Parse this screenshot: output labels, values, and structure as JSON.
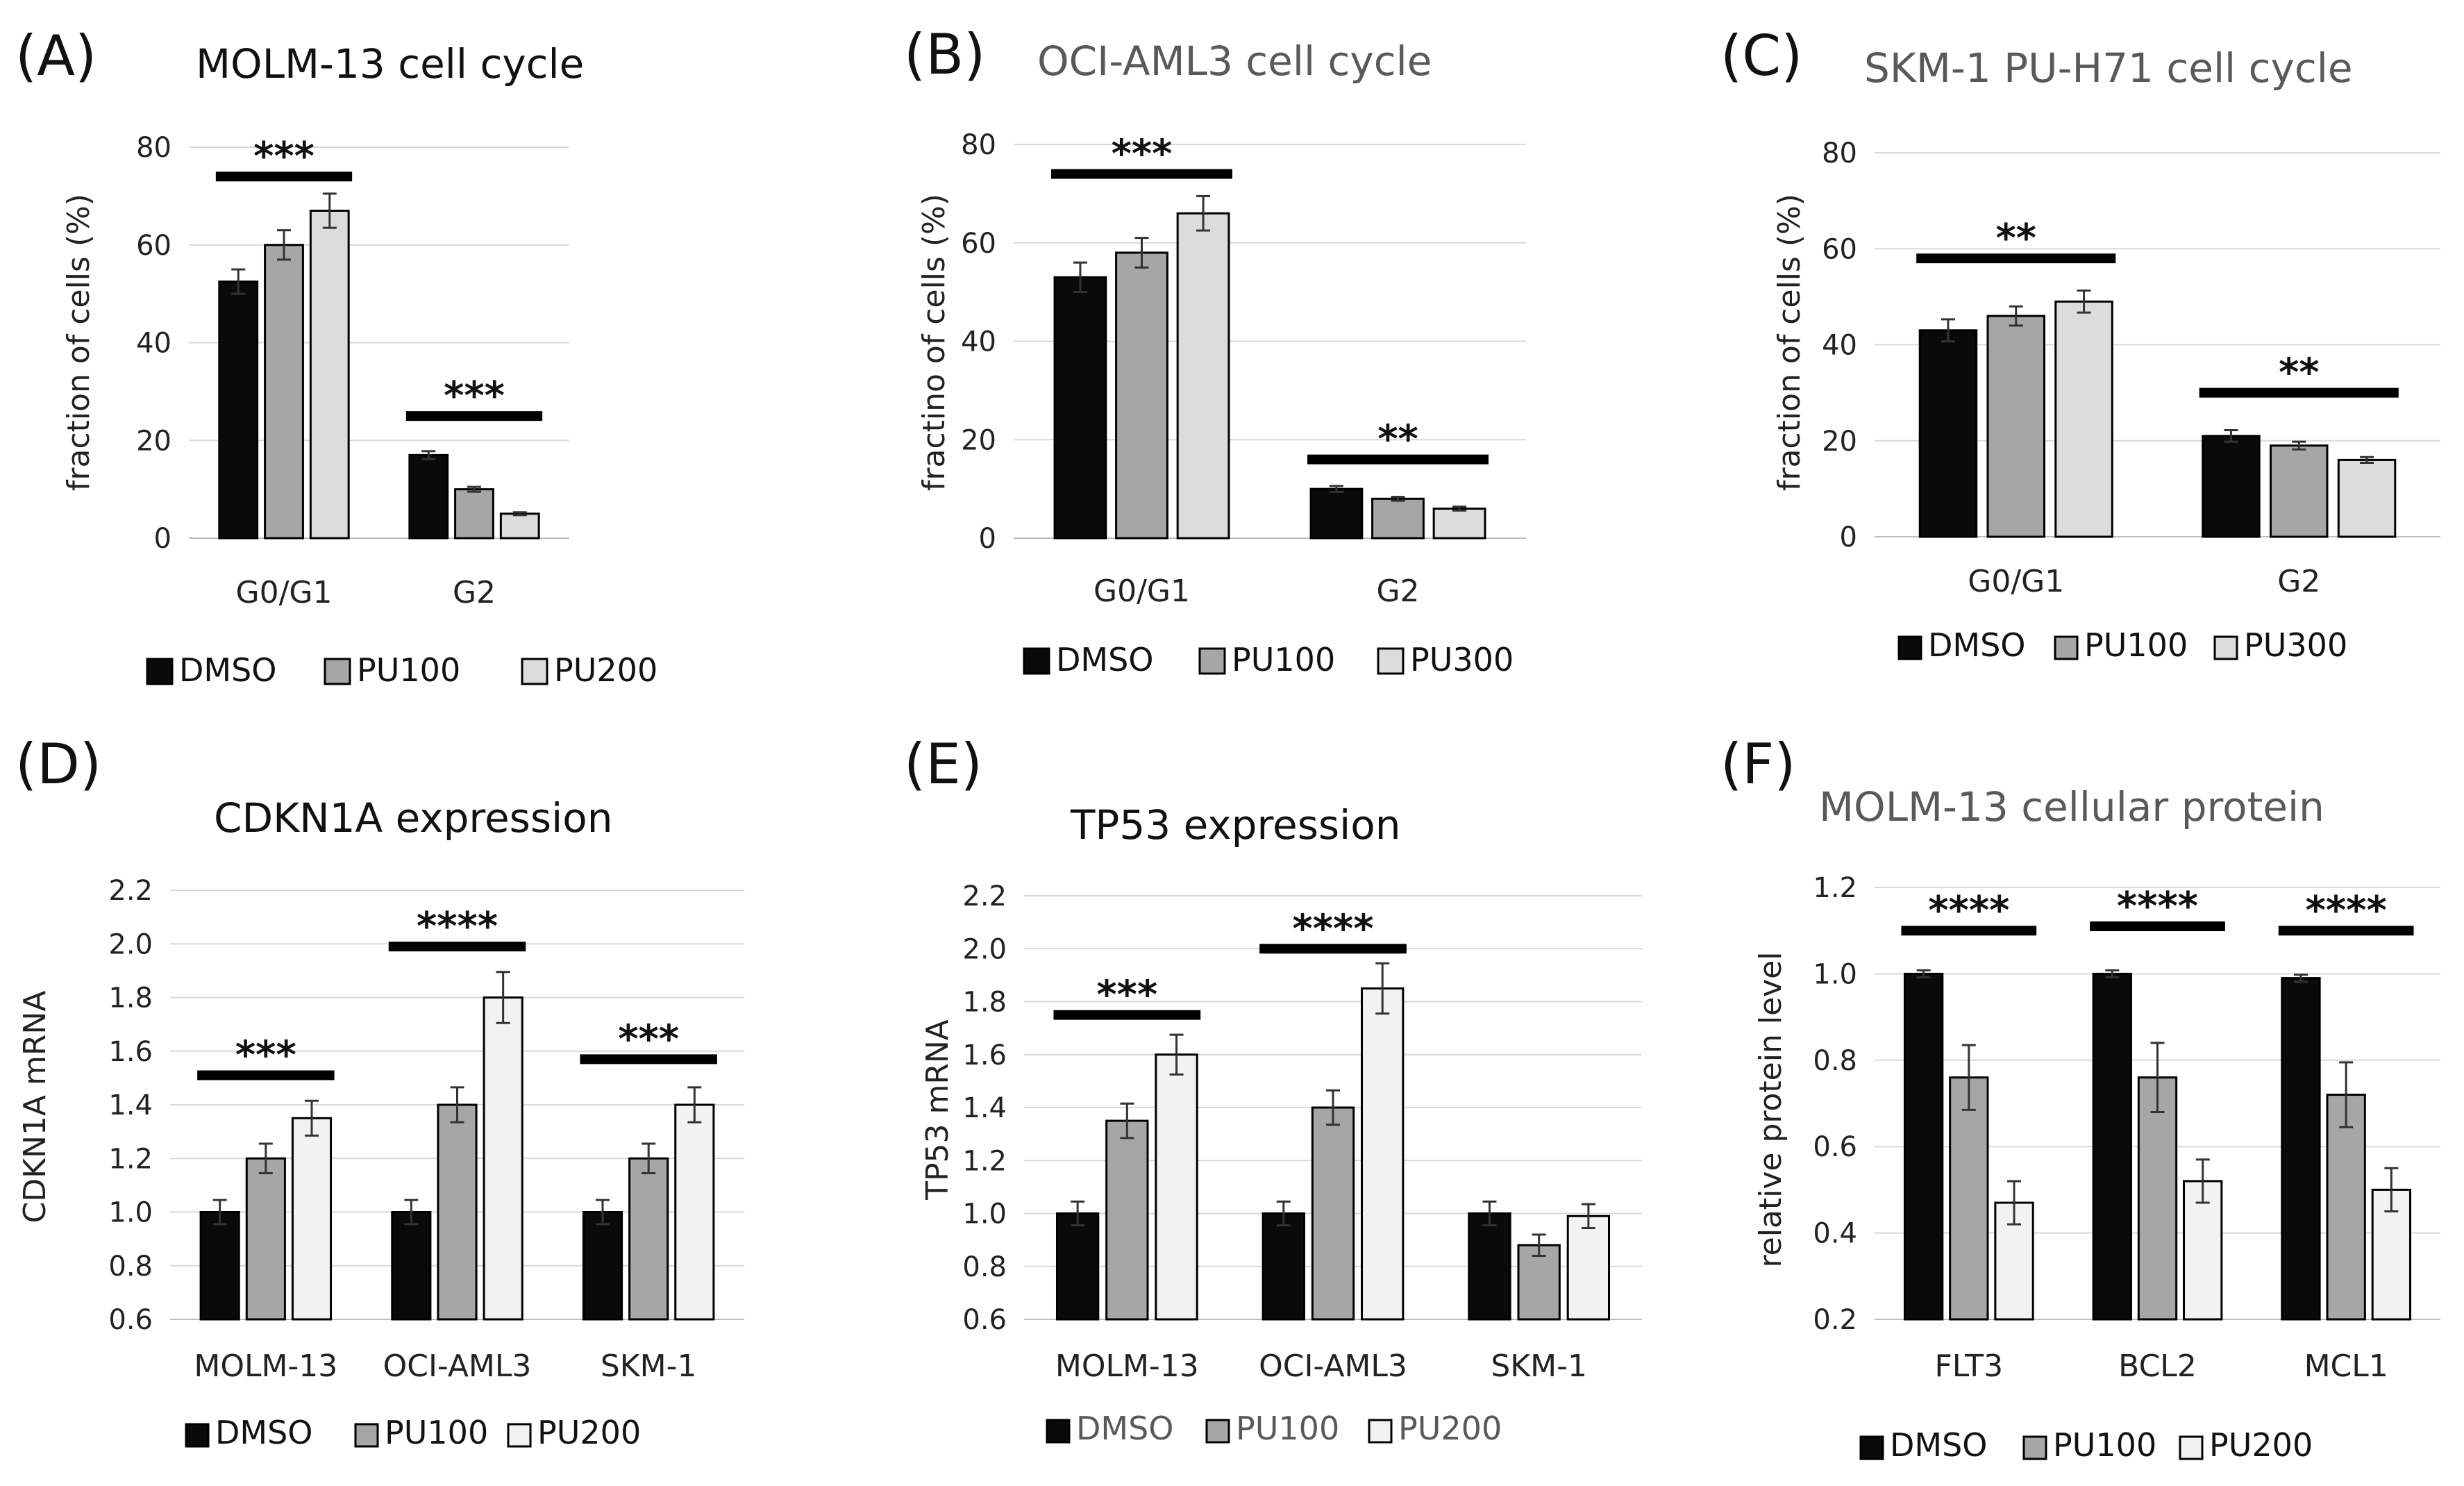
{
  "colors": {
    "DMSO": "#0a0a0a",
    "PU100": "#a6a6a6",
    "PU200": "#dcdcdc",
    "PU300": "#dcdcdc"
  },
  "colors_white_panels": {
    "DMSO": "#0a0a0a",
    "PU100": "#a6a6a6",
    "PU200": "#f2f2f2"
  },
  "chart_data": [
    {
      "panel": "(A)",
      "type": "bar",
      "title": "MOLM-13 cell cycle",
      "title_style": "dark",
      "ylabel": "fraction of cells (%)",
      "ylim": [
        0,
        80
      ],
      "yticks": [
        "0",
        "20",
        "40",
        "60",
        "80"
      ],
      "ytick_values": [
        0,
        20,
        40,
        60,
        80
      ],
      "categories": [
        "G0/G1",
        "G2"
      ],
      "series": [
        {
          "name": "DMSO",
          "values": [
            52.5,
            17
          ],
          "errors": [
            2.5,
            0.8
          ]
        },
        {
          "name": "PU100",
          "values": [
            60,
            10
          ],
          "errors": [
            3,
            0.5
          ]
        },
        {
          "name": "PU200",
          "values": [
            67,
            5
          ],
          "errors": [
            3.5,
            0.3
          ]
        }
      ],
      "significance": [
        {
          "group": 0,
          "y": 74,
          "label": "***"
        },
        {
          "group": 1,
          "y": 25,
          "label": "***"
        }
      ],
      "legend": [
        "DMSO",
        "PU100",
        "PU200"
      ],
      "legend_position": "bottom",
      "palette": "gray"
    },
    {
      "panel": "(B)",
      "type": "bar",
      "title": "OCI-AML3 cell cycle",
      "title_style": "gray",
      "ylabel": "fractino of cells (%)",
      "ylim": [
        0,
        80
      ],
      "yticks": [
        "0",
        "20",
        "40",
        "60",
        "80"
      ],
      "ytick_values": [
        0,
        20,
        40,
        60,
        80
      ],
      "categories": [
        "G0/G1",
        "G2"
      ],
      "series": [
        {
          "name": "DMSO",
          "values": [
            53,
            10
          ],
          "errors": [
            3,
            0.6
          ]
        },
        {
          "name": "PU100",
          "values": [
            58,
            8
          ],
          "errors": [
            3,
            0.4
          ]
        },
        {
          "name": "PU300",
          "values": [
            66,
            6
          ],
          "errors": [
            3.5,
            0.4
          ]
        }
      ],
      "significance": [
        {
          "group": 0,
          "y": 74,
          "label": "***"
        },
        {
          "group": 1,
          "y": 16,
          "label": "**"
        }
      ],
      "legend": [
        "DMSO",
        "PU100",
        "PU300"
      ],
      "legend_position": "bottom",
      "palette": "gray"
    },
    {
      "panel": "(C)",
      "type": "bar",
      "title": "SKM-1 PU-H71 cell cycle",
      "title_style": "gray",
      "ylabel": "fraction of cells (%)",
      "ylim": [
        0,
        80
      ],
      "yticks": [
        "0",
        "20",
        "40",
        "60",
        "80"
      ],
      "ytick_values": [
        0,
        20,
        40,
        60,
        80
      ],
      "categories": [
        "G0/G1",
        "G2"
      ],
      "series": [
        {
          "name": "DMSO",
          "values": [
            43,
            21
          ],
          "errors": [
            2.3,
            1.2
          ]
        },
        {
          "name": "PU100",
          "values": [
            46,
            19
          ],
          "errors": [
            2,
            0.8
          ]
        },
        {
          "name": "PU300",
          "values": [
            49,
            16
          ],
          "errors": [
            2.3,
            0.6
          ]
        }
      ],
      "significance": [
        {
          "group": 0,
          "y": 58,
          "label": "**"
        },
        {
          "group": 1,
          "y": 30,
          "label": "**"
        }
      ],
      "legend": [
        "DMSO",
        "PU100",
        "PU300"
      ],
      "legend_position": "bottom",
      "palette": "gray"
    },
    {
      "panel": "(D)",
      "type": "bar",
      "title": "CDKN1A expression",
      "title_style": "dark",
      "ylabel": "CDKN1A mRNA",
      "ylim": [
        0.6,
        2.2
      ],
      "yticks": [
        "0.6",
        "0.8",
        "1.0",
        "1.2",
        "1.4",
        "1.6",
        "1.8",
        "2.0",
        "2.2"
      ],
      "ytick_values": [
        0.6,
        0.8,
        1.0,
        1.2,
        1.4,
        1.6,
        1.8,
        2.0,
        2.2
      ],
      "categories": [
        "MOLM-13",
        "OCI-AML3",
        "SKM-1"
      ],
      "series": [
        {
          "name": "DMSO",
          "values": [
            1.0,
            1.0,
            1.0
          ],
          "errors": [
            0.045,
            0.045,
            0.045
          ]
        },
        {
          "name": "PU100",
          "values": [
            1.2,
            1.4,
            1.2
          ],
          "errors": [
            0.055,
            0.065,
            0.055
          ]
        },
        {
          "name": "PU200",
          "values": [
            1.35,
            1.8,
            1.4
          ],
          "errors": [
            0.065,
            0.095,
            0.065
          ]
        }
      ],
      "significance": [
        {
          "group": 0,
          "y": 1.51,
          "label": "***"
        },
        {
          "group": 1,
          "y": 1.99,
          "label": "****"
        },
        {
          "group": 2,
          "y": 1.57,
          "label": "***"
        }
      ],
      "legend": [
        "DMSO",
        "PU100",
        "PU200"
      ],
      "legend_position": "bottom",
      "palette": "white"
    },
    {
      "panel": "(E)",
      "type": "bar",
      "title": "TP53 expression",
      "title_style": "dark",
      "ylabel": "TP53 mRNA",
      "ylim": [
        0.6,
        2.2
      ],
      "yticks": [
        "0.6",
        "0.8",
        "1.0",
        "1.2",
        "1.4",
        "1.6",
        "1.8",
        "2.0",
        "2.2"
      ],
      "ytick_values": [
        0.6,
        0.8,
        1.0,
        1.2,
        1.4,
        1.6,
        1.8,
        2.0,
        2.2
      ],
      "categories": [
        "MOLM-13",
        "OCI-AML3",
        "SKM-1"
      ],
      "series": [
        {
          "name": "DMSO",
          "values": [
            1.0,
            1.0,
            1.0
          ],
          "errors": [
            0.045,
            0.045,
            0.045
          ]
        },
        {
          "name": "PU100",
          "values": [
            1.35,
            1.4,
            0.88
          ],
          "errors": [
            0.065,
            0.065,
            0.04
          ]
        },
        {
          "name": "PU200",
          "values": [
            1.6,
            1.85,
            0.99
          ],
          "errors": [
            0.075,
            0.095,
            0.045
          ]
        }
      ],
      "significance": [
        {
          "group": 0,
          "y": 1.75,
          "label": "***"
        },
        {
          "group": 1,
          "y": 2.0,
          "label": "****"
        }
      ],
      "legend": [
        "DMSO",
        "PU100",
        "PU200"
      ],
      "legend_position": "bottom",
      "palette": "white",
      "legend_text_style": "gray"
    },
    {
      "panel": "(F)",
      "type": "bar",
      "title": "MOLM-13 cellular protein",
      "title_style": "gray",
      "ylabel": "relative protein level",
      "ylim": [
        0.2,
        1.2
      ],
      "yticks": [
        "0.2",
        "0.4",
        "0.6",
        "0.8",
        "1.0",
        "1.2"
      ],
      "ytick_values": [
        0.2,
        0.4,
        0.6,
        0.8,
        1.0,
        1.2
      ],
      "categories": [
        "FLT3",
        "BCL2",
        "MCL1"
      ],
      "series": [
        {
          "name": "DMSO",
          "values": [
            1.0,
            1.0,
            0.99
          ],
          "errors": [
            0.008,
            0.008,
            0.008
          ]
        },
        {
          "name": "PU100",
          "values": [
            0.76,
            0.76,
            0.72
          ],
          "errors": [
            0.075,
            0.08,
            0.075
          ]
        },
        {
          "name": "PU200",
          "values": [
            0.47,
            0.52,
            0.5
          ],
          "errors": [
            0.05,
            0.05,
            0.05
          ]
        }
      ],
      "significance": [
        {
          "group": 0,
          "y": 1.1,
          "label": "****"
        },
        {
          "group": 1,
          "y": 1.11,
          "label": "****"
        },
        {
          "group": 2,
          "y": 1.1,
          "label": "****"
        }
      ],
      "legend": [
        "DMSO",
        "PU100",
        "PU200"
      ],
      "legend_position": "bottom",
      "palette": "white"
    }
  ]
}
